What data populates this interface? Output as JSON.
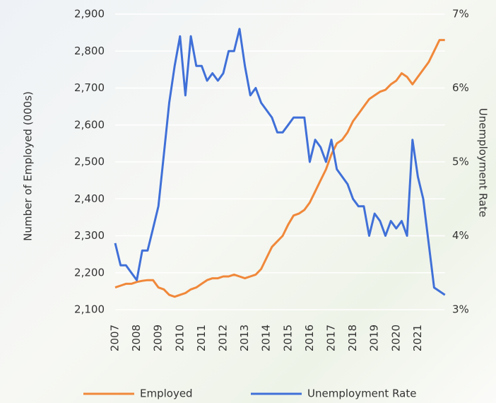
{
  "chart_data": {
    "type": "line",
    "categories": [
      "2007",
      null,
      null,
      null,
      "2008",
      null,
      null,
      null,
      "2009",
      null,
      null,
      null,
      "2010",
      null,
      null,
      null,
      "2011",
      null,
      null,
      null,
      "2012",
      null,
      null,
      null,
      "2013",
      null,
      null,
      null,
      "2014",
      null,
      null,
      null,
      "2015",
      null,
      null,
      null,
      "2016",
      null,
      null,
      null,
      "2017",
      null,
      null,
      null,
      "2018",
      null,
      null,
      null,
      "2019",
      null,
      null,
      null,
      "2020",
      null,
      null,
      null,
      "2021",
      null,
      null,
      null,
      null,
      null
    ],
    "series": [
      {
        "name": "Employed",
        "color": "#f0883a",
        "values": [
          2160,
          2165,
          2170,
          2170,
          2175,
          2178,
          2180,
          2180,
          2160,
          2155,
          2140,
          2135,
          2140,
          2145,
          2155,
          2160,
          2170,
          2180,
          2185,
          2185,
          2190,
          2190,
          2195,
          2190,
          2185,
          2190,
          2195,
          2210,
          2240,
          2270,
          2285,
          2300,
          2330,
          2355,
          2360,
          2370,
          2390,
          2420,
          2450,
          2480,
          2520,
          2550,
          2560,
          2580,
          2610,
          2630,
          2650,
          2670,
          2680,
          2690,
          2695,
          2710,
          2720,
          2740,
          2730,
          2710,
          2730,
          2750,
          2770,
          2800,
          2830,
          2830
        ]
      },
      {
        "name": "Unemployment Rate",
        "color": "#4070d8",
        "axis": "y2",
        "values": [
          3.9,
          3.6,
          3.6,
          3.5,
          3.4,
          3.8,
          3.8,
          4.1,
          4.4,
          5.1,
          5.8,
          6.3,
          6.7,
          5.9,
          6.7,
          6.3,
          6.3,
          6.1,
          6.2,
          6.1,
          6.2,
          6.5,
          6.5,
          6.8,
          6.3,
          5.9,
          6.0,
          5.8,
          5.7,
          5.6,
          5.4,
          5.4,
          5.5,
          5.6,
          5.6,
          5.6,
          5.0,
          5.3,
          5.2,
          5.0,
          5.3,
          4.9,
          4.8,
          4.7,
          4.5,
          4.4,
          4.4,
          4.0,
          4.3,
          4.2,
          4.0,
          4.2,
          4.1,
          4.2,
          4.0,
          5.3,
          4.8,
          4.5,
          3.9,
          3.3,
          3.25,
          3.2
        ]
      }
    ],
    "y_label": "Number of Employed (000s)",
    "y2_label": "Unemployment Rate",
    "ylim": [
      2100,
      2900
    ],
    "yticks": [
      {
        "value": 2100,
        "label": "2,100"
      },
      {
        "value": 2200,
        "label": "2,200"
      },
      {
        "value": 2300,
        "label": "2,300"
      },
      {
        "value": 2400,
        "label": "2,400"
      },
      {
        "value": 2500,
        "label": "2,500"
      },
      {
        "value": 2600,
        "label": "2,600"
      },
      {
        "value": 2700,
        "label": "2,700"
      },
      {
        "value": 2800,
        "label": "2,800"
      },
      {
        "value": 2900,
        "label": "2,900"
      }
    ],
    "y2lim": [
      3,
      7
    ],
    "y2ticks": [
      {
        "value": 3,
        "label": "3%"
      },
      {
        "value": 4,
        "label": "4%"
      },
      {
        "value": 5,
        "label": "5%"
      },
      {
        "value": 6,
        "label": "6%"
      },
      {
        "value": 7,
        "label": "7%"
      }
    ],
    "grid": true,
    "legend": "bottom"
  }
}
